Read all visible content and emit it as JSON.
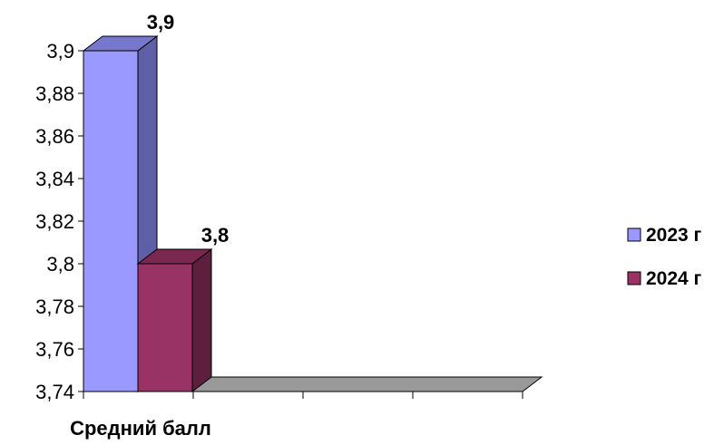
{
  "chart_data": {
    "type": "bar",
    "categories": [
      "Средний балл"
    ],
    "series": [
      {
        "name": "2023 г",
        "values": [
          3.9
        ],
        "color": "#9999ff",
        "color_side": "#5f5fa8",
        "color_top": "#7777cc",
        "data_label": "3,9"
      },
      {
        "name": "2024 г",
        "values": [
          3.8
        ],
        "color": "#993366",
        "color_side": "#5e1f3e",
        "color_top": "#7a2850",
        "data_label": "3,8"
      }
    ],
    "ylim": [
      3.74,
      3.9
    ],
    "y_ticks": [
      3.74,
      3.76,
      3.78,
      3.8,
      3.82,
      3.84,
      3.86,
      3.88,
      3.9
    ],
    "y_tick_labels": [
      "3,74",
      "3,76",
      "3,78",
      "3,8",
      "3,82",
      "3,84",
      "3,86",
      "3,88",
      "3,9"
    ],
    "title": "",
    "xlabel": "",
    "ylabel": "",
    "grid": false,
    "legend_position": "right",
    "floor_color": "#999999",
    "three_d": true
  }
}
